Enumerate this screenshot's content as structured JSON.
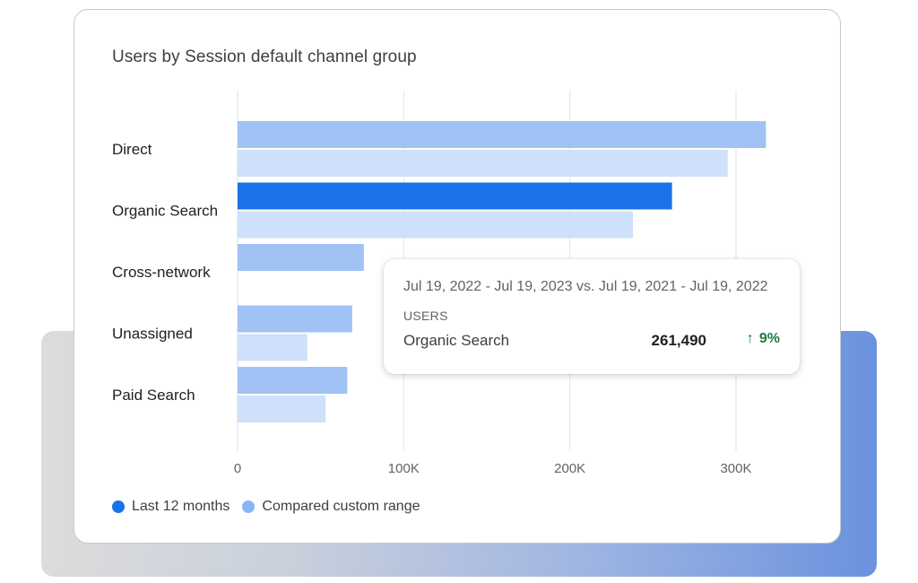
{
  "title": "Users by Session default channel group",
  "chart_data": {
    "type": "bar",
    "orientation": "horizontal",
    "title": "Users by Session default channel group",
    "categories": [
      "Direct",
      "Organic Search",
      "Cross-network",
      "Unassigned",
      "Paid Search"
    ],
    "series": [
      {
        "name": "Last 12 months",
        "values": [
          318000,
          261490,
          76000,
          69000,
          66000
        ],
        "color": "#a1c2f5"
      },
      {
        "name": "Compared custom range",
        "values": [
          295000,
          238000,
          null,
          42000,
          53000
        ],
        "color": "#cfe0fa"
      }
    ],
    "highlight": {
      "category": "Organic Search",
      "series": "Last 12 months",
      "color": "#1a73e8"
    },
    "xticks": [
      0,
      100000,
      200000,
      300000
    ],
    "xtick_labels": [
      "0",
      "100K",
      "200K",
      "300K"
    ],
    "xlim": [
      0,
      330000
    ],
    "grid": true,
    "legend_placement": "bottom-left"
  },
  "legend": [
    {
      "label": "Last 12 months",
      "color": "#1a73e8"
    },
    {
      "label": "Compared custom range",
      "color": "#8ab4f8"
    }
  ],
  "tooltip": {
    "date_range": "Jul 19, 2022 - Jul 19, 2023 vs. Jul 19, 2021 - Jul 19, 2022",
    "metric": "USERS",
    "series": "Organic Search",
    "value": "261,490",
    "change": "9%",
    "change_icon": "arrow-up-icon",
    "change_color": "#188038"
  }
}
